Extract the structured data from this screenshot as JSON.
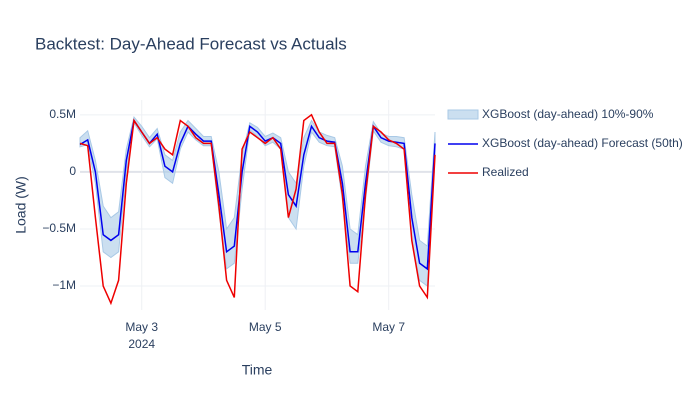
{
  "chart_data": {
    "type": "line",
    "title": "Backtest: Day-Ahead Forecast vs Actuals",
    "x_label": "Time",
    "y_label": "Load (W)",
    "x_axis_year": "2024",
    "x": [
      "2024-05-02T00:00",
      "2024-05-02T03:00",
      "2024-05-02T06:00",
      "2024-05-02T09:00",
      "2024-05-02T12:00",
      "2024-05-02T15:00",
      "2024-05-02T18:00",
      "2024-05-02T21:00",
      "2024-05-03T00:00",
      "2024-05-03T03:00",
      "2024-05-03T06:00",
      "2024-05-03T09:00",
      "2024-05-03T12:00",
      "2024-05-03T15:00",
      "2024-05-03T18:00",
      "2024-05-03T21:00",
      "2024-05-04T00:00",
      "2024-05-04T03:00",
      "2024-05-04T06:00",
      "2024-05-04T09:00",
      "2024-05-04T12:00",
      "2024-05-04T15:00",
      "2024-05-04T18:00",
      "2024-05-04T21:00",
      "2024-05-05T00:00",
      "2024-05-05T03:00",
      "2024-05-05T06:00",
      "2024-05-05T09:00",
      "2024-05-05T12:00",
      "2024-05-05T15:00",
      "2024-05-05T18:00",
      "2024-05-05T21:00",
      "2024-05-06T00:00",
      "2024-05-06T03:00",
      "2024-05-06T06:00",
      "2024-05-06T09:00",
      "2024-05-06T12:00",
      "2024-05-06T15:00",
      "2024-05-06T18:00",
      "2024-05-06T21:00",
      "2024-05-07T00:00",
      "2024-05-07T03:00",
      "2024-05-07T06:00",
      "2024-05-07T09:00",
      "2024-05-07T12:00",
      "2024-05-07T15:00",
      "2024-05-07T18:00"
    ],
    "band": {
      "name": "XGBoost (day-ahead) 10%-90%",
      "color": "#a9c9e6",
      "lower": [
        220000,
        240000,
        -100000,
        -700000,
        -750000,
        -700000,
        0,
        430000,
        320000,
        220000,
        290000,
        -50000,
        -100000,
        200000,
        350000,
        280000,
        230000,
        230000,
        -350000,
        -850000,
        -800000,
        -150000,
        370000,
        310000,
        230000,
        260000,
        200000,
        -400000,
        -500000,
        50000,
        350000,
        260000,
        230000,
        220000,
        -250000,
        -800000,
        -800000,
        -250000,
        360000,
        260000,
        230000,
        220000,
        200000,
        -600000,
        -950000,
        -1000000,
        150000
      ],
      "upper": [
        300000,
        360000,
        100000,
        -300000,
        -400000,
        -350000,
        200000,
        480000,
        400000,
        300000,
        380000,
        150000,
        100000,
        350000,
        450000,
        380000,
        310000,
        310000,
        0,
        -500000,
        -400000,
        150000,
        430000,
        390000,
        310000,
        340000,
        300000,
        0,
        -100000,
        300000,
        450000,
        350000,
        320000,
        300000,
        50000,
        -500000,
        -550000,
        50000,
        440000,
        340000,
        310000,
        310000,
        300000,
        -200000,
        -600000,
        -650000,
        350000
      ]
    },
    "series": [
      {
        "name": "XGBoost (day-ahead) Forecast (50th)",
        "color": "#0000ee",
        "values": [
          240000,
          280000,
          0,
          -550000,
          -600000,
          -550000,
          100000,
          450000,
          350000,
          250000,
          330000,
          50000,
          0,
          250000,
          400000,
          330000,
          270000,
          270000,
          -200000,
          -700000,
          -650000,
          0,
          400000,
          350000,
          270000,
          300000,
          250000,
          -200000,
          -300000,
          150000,
          400000,
          300000,
          270000,
          260000,
          -100000,
          -700000,
          -700000,
          -100000,
          400000,
          300000,
          270000,
          260000,
          250000,
          -400000,
          -800000,
          -850000,
          250000
        ]
      },
      {
        "name": "Realized",
        "color": "#ee0000",
        "values": [
          250000,
          230000,
          -400000,
          -1000000,
          -1150000,
          -950000,
          -100000,
          450000,
          350000,
          250000,
          300000,
          200000,
          150000,
          450000,
          400000,
          300000,
          250000,
          250000,
          -300000,
          -950000,
          -1100000,
          200000,
          350000,
          300000,
          250000,
          300000,
          200000,
          -400000,
          -150000,
          450000,
          500000,
          350000,
          250000,
          250000,
          -200000,
          -1000000,
          -1050000,
          -200000,
          400000,
          350000,
          280000,
          250000,
          200000,
          -600000,
          -1000000,
          -1100000,
          150000
        ]
      }
    ],
    "xlim": [
      "2024-05-02T00:00",
      "2024-05-07T18:00"
    ],
    "xticks": [
      {
        "value": "2024-05-03T00:00",
        "label": "May 3"
      },
      {
        "value": "2024-05-05T00:00",
        "label": "May 5"
      },
      {
        "value": "2024-05-07T00:00",
        "label": "May 7"
      }
    ],
    "ylim": [
      -1210000,
      630000
    ],
    "yticks": [
      {
        "value": 500000,
        "label": "0.5M"
      },
      0,
      {
        "value": -500000,
        "label": "−0.5M"
      },
      {
        "value": -1000000,
        "label": "−1M"
      }
    ],
    "grid": true
  }
}
